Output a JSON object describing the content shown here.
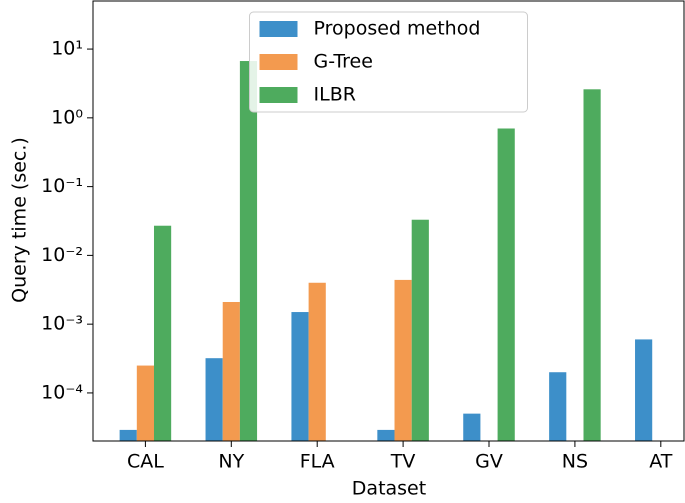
{
  "chart_data": {
    "type": "bar",
    "x_label": "Dataset",
    "y_label": "Query time (sec.)",
    "categories": [
      "CAL",
      "NY",
      "FLA",
      "TV",
      "GV",
      "NS",
      "AT"
    ],
    "series": [
      {
        "name": "Proposed method",
        "color": "#3d8fc9",
        "values": [
          2.9e-05,
          0.00032,
          0.0015,
          2.9e-05,
          5e-05,
          0.0002,
          0.0006
        ]
      },
      {
        "name": "G-Tree",
        "color": "#f39a4f",
        "values": [
          0.00025,
          0.0021,
          0.004,
          0.0044,
          null,
          null,
          null
        ]
      },
      {
        "name": "ILBR",
        "color": "#4eab5e",
        "values": [
          0.027,
          6.7,
          null,
          0.033,
          0.7,
          2.6,
          null
        ]
      }
    ],
    "ylim": [
      2e-05,
      50
    ],
    "y_log_scale": true,
    "yticks": [
      {
        "value": 0.0001,
        "label": "10⁻⁴"
      },
      {
        "value": 0.001,
        "label": "10⁻³"
      },
      {
        "value": 0.01,
        "label": "10⁻²"
      },
      {
        "value": 0.1,
        "label": "10⁻¹"
      },
      {
        "value": 1,
        "label": "10⁰"
      },
      {
        "value": 10,
        "label": "10¹"
      }
    ],
    "legend": "upper center"
  }
}
